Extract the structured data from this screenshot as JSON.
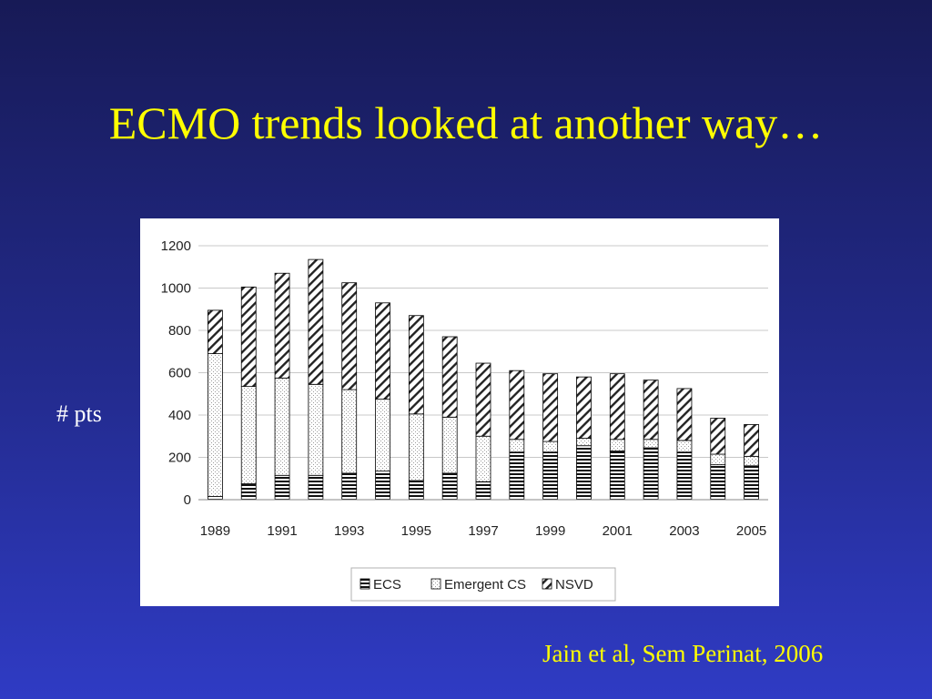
{
  "slide": {
    "title": "ECMO trends looked at another way…",
    "y_caption": "# pts",
    "citation": "Jain et al, Sem Perinat, 2006"
  },
  "chart_data": {
    "type": "bar",
    "stacked": true,
    "categories": [
      "1989",
      "1990",
      "1991",
      "1992",
      "1993",
      "1994",
      "1995",
      "1996",
      "1997",
      "1998",
      "1999",
      "2000",
      "2001",
      "2002",
      "2003",
      "2004",
      "2005"
    ],
    "x_tick_labels": [
      "1989",
      "1991",
      "1993",
      "1995",
      "1997",
      "1999",
      "2001",
      "2003",
      "2005"
    ],
    "series": [
      {
        "name": "ECS",
        "pattern": "horizontal-stripes",
        "values": [
          15,
          75,
          115,
          115,
          125,
          135,
          90,
          125,
          85,
          225,
          225,
          255,
          230,
          245,
          225,
          165,
          160
        ]
      },
      {
        "name": "Emergent CS",
        "pattern": "dots",
        "values": [
          675,
          460,
          460,
          430,
          395,
          340,
          315,
          265,
          215,
          60,
          50,
          35,
          55,
          40,
          55,
          50,
          45
        ]
      },
      {
        "name": "NSVD",
        "pattern": "diagonal-hatch",
        "values": [
          205,
          470,
          495,
          590,
          505,
          455,
          465,
          380,
          345,
          325,
          320,
          290,
          310,
          280,
          245,
          170,
          150
        ]
      }
    ],
    "ylim": [
      0,
      1200
    ],
    "yticks": [
      0,
      200,
      400,
      600,
      800,
      1000,
      1200
    ],
    "grid": true,
    "legend_position": "bottom",
    "colors": {
      "bar_outline": "#000000",
      "grid": "#c8c8c8",
      "panel": "#ffffff"
    }
  }
}
